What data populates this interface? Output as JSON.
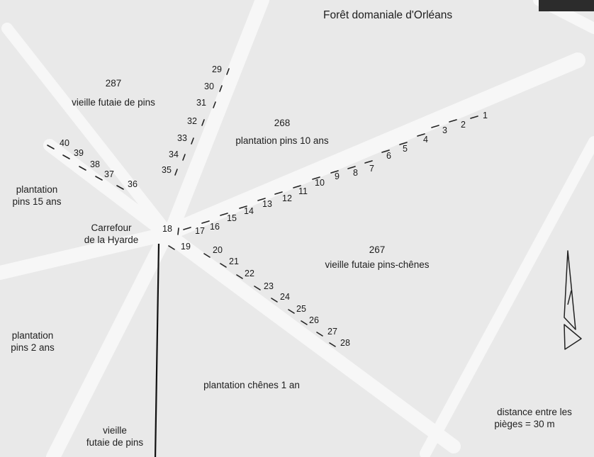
{
  "title": "Forêt domaniale d'Orléans",
  "parcels": {
    "p287": {
      "number": "287",
      "label": "vieille futaie de pins"
    },
    "p268": {
      "number": "268",
      "label": "plantation pins 10 ans"
    },
    "p267": {
      "number": "267",
      "label": "vieille futaie pins-chênes"
    },
    "plant15": {
      "line1": "plantation",
      "line2": "pins 15 ans"
    },
    "plant2": {
      "line1": "plantation",
      "line2": "pins 2 ans"
    },
    "chenes": {
      "label": "plantation chênes 1 an"
    },
    "vieilleBottom": {
      "line1": "vieille",
      "line2": "futaie de pins"
    }
  },
  "junction": {
    "line1": "Carrefour",
    "line2": "de la Hyarde"
  },
  "legend": {
    "line1": "distance entre les",
    "line2": "pièges = 30 m"
  },
  "traps": [
    "1",
    "2",
    "3",
    "4",
    "5",
    "6",
    "7",
    "8",
    "9",
    "10",
    "11",
    "12",
    "13",
    "14",
    "15",
    "16",
    "17",
    "18",
    "19",
    "20",
    "21",
    "22",
    "23",
    "24",
    "25",
    "26",
    "27",
    "28",
    "29",
    "30",
    "31",
    "32",
    "33",
    "34",
    "35",
    "36",
    "37",
    "38",
    "39",
    "40"
  ],
  "north_arrow": "north-arrow-icon"
}
